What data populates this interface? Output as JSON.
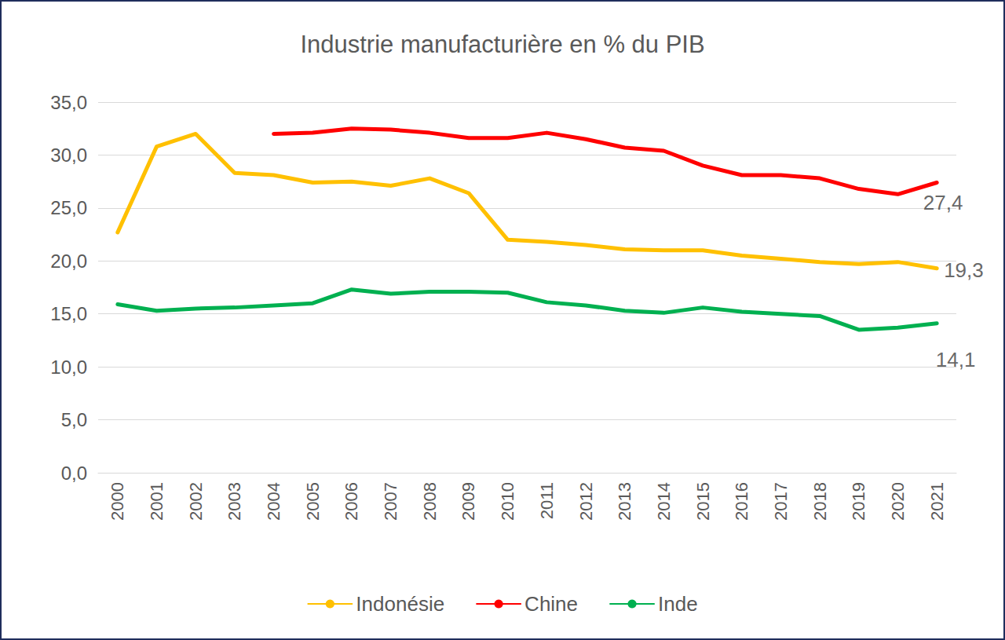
{
  "chart_data": {
    "type": "line",
    "title": "Industrie manufacturière en % du PIB",
    "categories": [
      "2000",
      "2001",
      "2002",
      "2003",
      "2004",
      "2005",
      "2006",
      "2007",
      "2008",
      "2009",
      "2010",
      "2011",
      "2012",
      "2013",
      "2014",
      "2015",
      "2016",
      "2017",
      "2018",
      "2019",
      "2020",
      "2021"
    ],
    "series": [
      {
        "name": "Indonésie",
        "color": "#ffc000",
        "values": [
          22.7,
          30.8,
          32.0,
          28.3,
          28.1,
          27.4,
          27.5,
          27.1,
          27.8,
          26.4,
          22.0,
          21.8,
          21.5,
          21.1,
          21.0,
          21.0,
          20.5,
          20.2,
          19.9,
          19.7,
          19.9,
          19.3
        ]
      },
      {
        "name": "Chine",
        "color": "#ff0000",
        "values": [
          null,
          null,
          null,
          null,
          32.0,
          32.1,
          32.5,
          32.4,
          32.1,
          31.6,
          31.6,
          32.1,
          31.5,
          30.7,
          30.4,
          29.0,
          28.1,
          28.1,
          27.8,
          26.8,
          26.3,
          27.4
        ]
      },
      {
        "name": "Inde",
        "color": "#00b050",
        "values": [
          15.9,
          15.3,
          15.5,
          15.6,
          15.8,
          16.0,
          17.3,
          16.9,
          17.1,
          17.1,
          17.0,
          16.1,
          15.8,
          15.3,
          15.1,
          15.6,
          15.2,
          15.0,
          14.8,
          13.5,
          13.7,
          14.1
        ]
      }
    ],
    "annotations": [
      {
        "text": "27,4",
        "x": "2021",
        "y": 27.4
      },
      {
        "text": "19,3",
        "x": "2021",
        "y": 19.3
      },
      {
        "text": "14,1",
        "x": "2021",
        "y": 14.1
      }
    ],
    "ylim": [
      0,
      35
    ],
    "yticks": [
      {
        "value": 0,
        "label": "0,0"
      },
      {
        "value": 5,
        "label": "5,0"
      },
      {
        "value": 10,
        "label": "10,0"
      },
      {
        "value": 15,
        "label": "15,0"
      },
      {
        "value": 20,
        "label": "20,0"
      },
      {
        "value": 25,
        "label": "25,0"
      },
      {
        "value": 30,
        "label": "30,0"
      },
      {
        "value": 35,
        "label": "35,0"
      }
    ],
    "grid": true,
    "legend": "bottom"
  }
}
